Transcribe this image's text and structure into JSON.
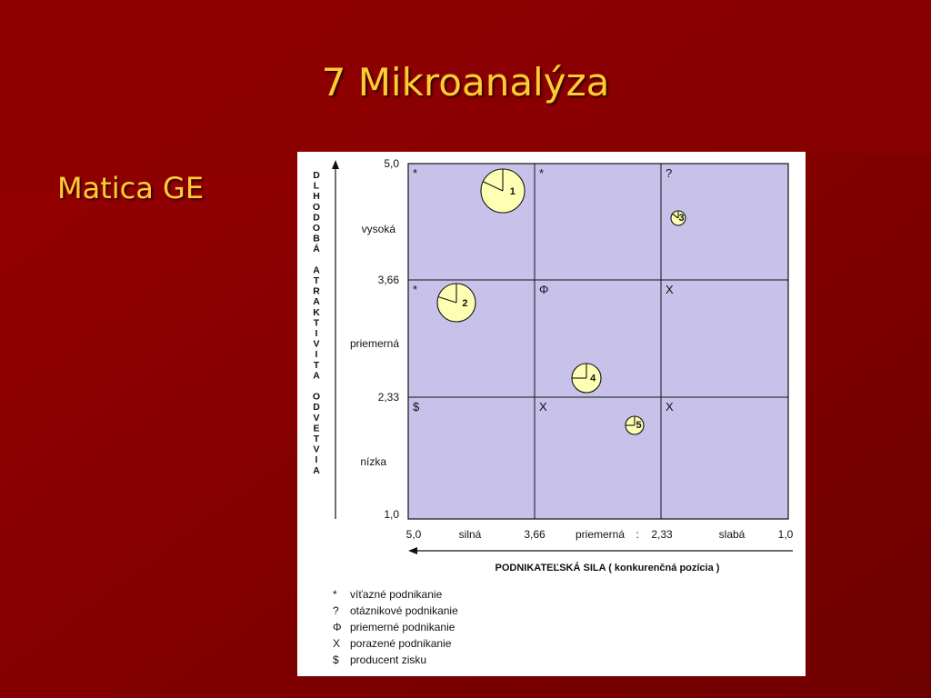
{
  "slide": {
    "title": "7 Mikroanalýza",
    "bullet": "Matica GE"
  },
  "colors": {
    "background": "#7a0000",
    "text_accent": "#ffcc33",
    "grid_fill": "#c8c2ea",
    "circle_fill": "#ffffb4"
  },
  "matrix": {
    "y_axis_title": "DLHODOBÁ ATRAKTIVITA ODVETVIA",
    "x_axis_title": "PODNIKATEĽSKÁ SILA ( konkurenčná pozícia )",
    "y_ticks": [
      "5,0",
      "3,66",
      "2,33",
      "1,0"
    ],
    "y_levels": [
      "vysoká",
      "priemerná",
      "nízka"
    ],
    "x_ticks": [
      "5,0",
      "3,66",
      "2,33",
      "1,0"
    ],
    "x_levels": [
      "silná",
      "priemerná",
      "slabá"
    ],
    "x_sep": ":",
    "cells": [
      [
        "*",
        "*",
        "?"
      ],
      [
        "*",
        "Φ",
        "X"
      ],
      [
        "$",
        "X",
        "X"
      ]
    ],
    "units": [
      {
        "label": "1",
        "cell": [
          0,
          0
        ],
        "slice_pct": 18
      },
      {
        "label": "2",
        "cell": [
          1,
          0
        ],
        "slice_pct": 20
      },
      {
        "label": "3",
        "cell": [
          0,
          2
        ],
        "slice_pct": 15
      },
      {
        "label": "4",
        "cell": [
          1,
          1
        ],
        "slice_pct": 25
      },
      {
        "label": "5",
        "cell": [
          2,
          1
        ],
        "slice_pct": 25
      }
    ],
    "legend": [
      {
        "symbol": "*",
        "text": "víťazné podnikanie"
      },
      {
        "symbol": "?",
        "text": "otáznikové podnikanie"
      },
      {
        "symbol": "Φ",
        "text": "priemerné podnikanie"
      },
      {
        "symbol": "X",
        "text": "porazené podnikanie"
      },
      {
        "symbol": "$",
        "text": "producent zisku"
      }
    ]
  }
}
